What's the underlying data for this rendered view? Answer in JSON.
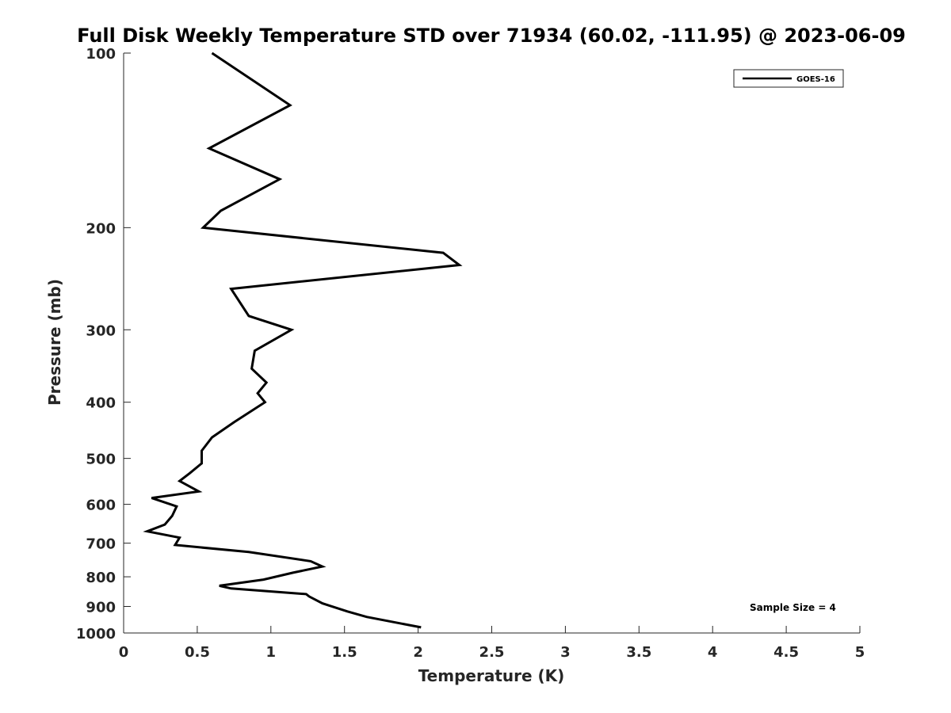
{
  "chart_data": {
    "type": "line",
    "title": "Full Disk Weekly Temperature STD over 71934 (60.02, -111.95) @ 2023-06-09",
    "xlabel": "Temperature (K)",
    "ylabel": "Pressure (mb)",
    "xlim": [
      0,
      5
    ],
    "ylim": [
      100,
      1000
    ],
    "y_scale": "log",
    "y_reversed": true,
    "xticks": [
      0,
      0.5,
      1,
      1.5,
      2,
      2.5,
      3,
      3.5,
      4,
      4.5,
      5
    ],
    "xtick_labels": [
      "0",
      "0.5",
      "1",
      "1.5",
      "2",
      "2.5",
      "3",
      "3.5",
      "4",
      "4.5",
      "5"
    ],
    "yticks": [
      100,
      200,
      300,
      400,
      500,
      600,
      700,
      800,
      900,
      1000
    ],
    "ytick_labels": [
      "100",
      "200",
      "300",
      "400",
      "500",
      "600",
      "700",
      "800",
      "900",
      "1000"
    ],
    "grid": false,
    "legend_position": "top-right",
    "series": [
      {
        "name": "GOES-16",
        "color": "#000000",
        "x": [
          0.6,
          1.13,
          0.58,
          1.06,
          0.66,
          0.54,
          2.17,
          2.28,
          0.73,
          0.85,
          1.14,
          0.89,
          0.87,
          0.97,
          0.91,
          0.96,
          0.75,
          0.6,
          0.53,
          0.53,
          0.45,
          0.38,
          0.51,
          0.19,
          0.36,
          0.33,
          0.28,
          0.16,
          0.38,
          0.35,
          0.85,
          1.27,
          1.35,
          1.15,
          0.95,
          0.65,
          0.73,
          1.24,
          1.26,
          1.35,
          1.52,
          1.65,
          2.02
        ],
        "y": [
          100,
          123,
          146,
          165,
          187,
          200,
          221,
          232,
          255,
          284,
          300,
          326,
          350,
          370,
          386,
          400,
          433,
          460,
          485,
          510,
          530,
          547,
          570,
          585,
          605,
          628,
          650,
          668,
          685,
          705,
          725,
          752,
          768,
          787,
          809,
          829,
          838,
          857,
          865,
          889,
          918,
          938,
          978
        ]
      }
    ],
    "annotations": [
      "Sample Size = 4"
    ]
  }
}
